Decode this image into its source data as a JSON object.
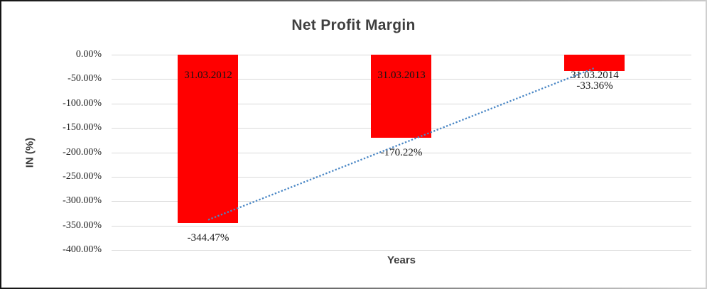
{
  "chart_data": {
    "type": "bar",
    "title": "Net Profit Margin",
    "xlabel": "Years",
    "ylabel": "IN (%)",
    "categories": [
      "31.03.2012",
      "31.03.2013",
      "31.03.2014"
    ],
    "values": [
      -344.47,
      -170.22,
      -33.36
    ],
    "data_labels": [
      "-344.47%",
      "-170.22%",
      "-33.36%"
    ],
    "ylim": [
      -400,
      0
    ],
    "ytick_step": 50,
    "ytick_labels": [
      "0.00%",
      "-50.00%",
      "-100.00%",
      "-150.00%",
      "-200.00%",
      "-250.00%",
      "-300.00%",
      "-350.00%",
      "-400.00%"
    ],
    "grid": true,
    "legend": "none",
    "bar_color": "#ff0000",
    "gridline_color": "#d9d9d9",
    "text_color": "#1f1f1f",
    "title_color": "#3f3f3f",
    "trendline": {
      "type": "linear",
      "style": "dotted",
      "color": "#4a87c5",
      "span": "first-category-center-to-last-category-center"
    }
  }
}
